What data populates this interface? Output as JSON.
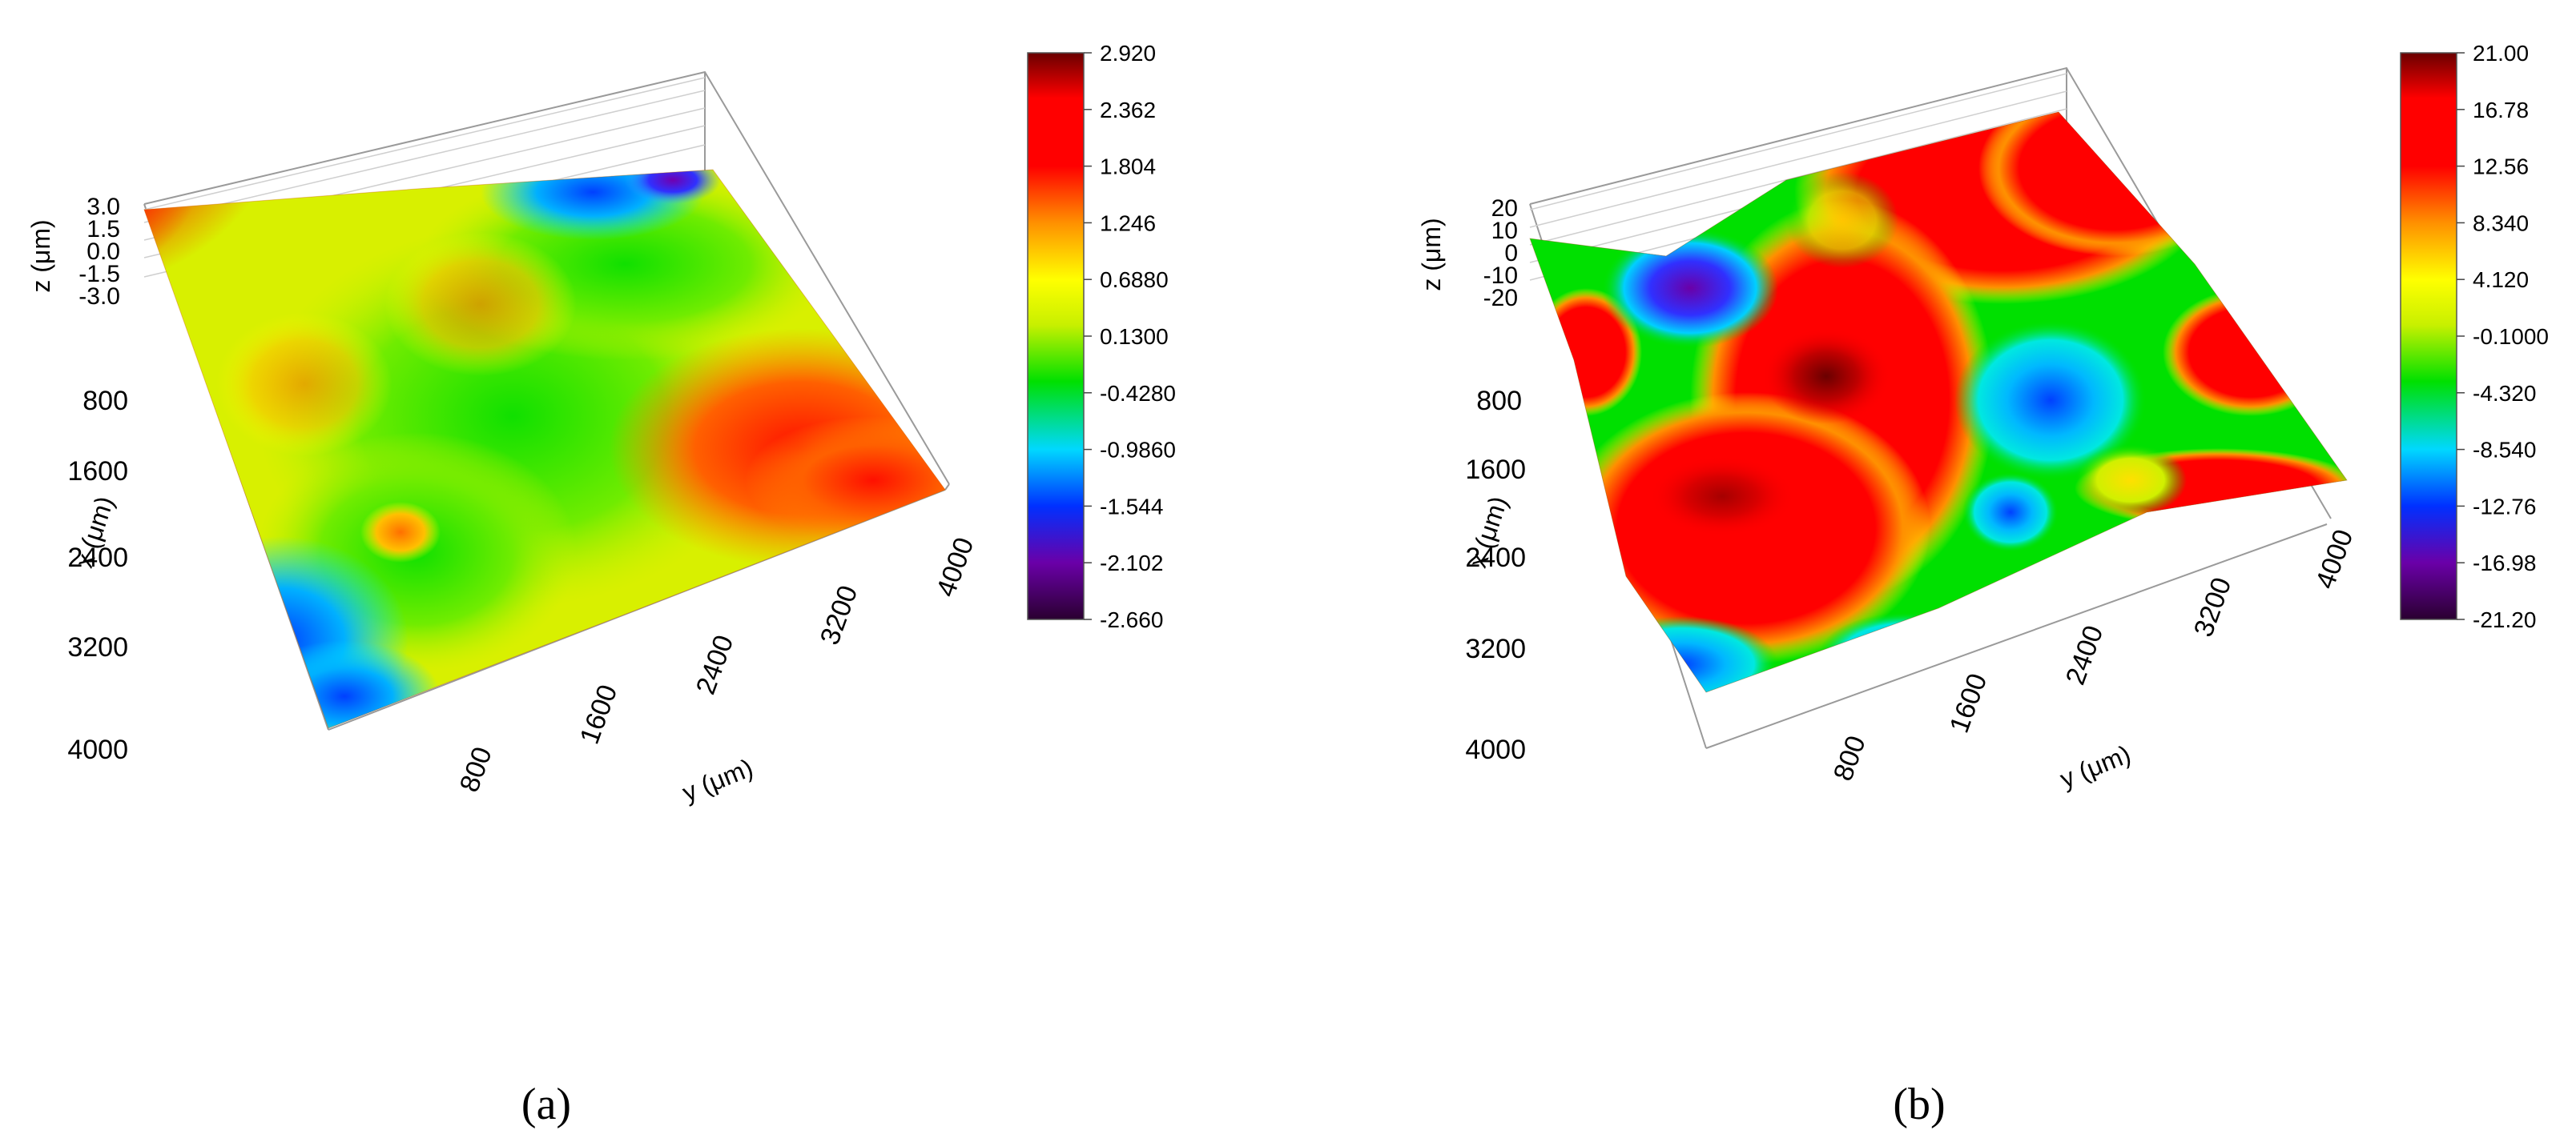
{
  "chart_data": [
    {
      "type": "surface",
      "panel_label": "(a)",
      "xlabel": "x (μm)",
      "ylabel": "y (μm)",
      "zlabel": "z (μm)",
      "x_ticks": [
        "800",
        "1600",
        "2400",
        "3200",
        "4000"
      ],
      "y_ticks": [
        "800",
        "1600",
        "2400",
        "3200",
        "4000"
      ],
      "z_ticks": [
        "3.0",
        "1.5",
        "0.0",
        "-1.5",
        "-3.0"
      ],
      "xlim": [
        0,
        4000
      ],
      "ylim": [
        0,
        4000
      ],
      "zlim": [
        -3.0,
        3.0
      ],
      "colorbar": {
        "ticks": [
          "2.920",
          "2.362",
          "1.804",
          "1.246",
          "0.6880",
          "0.1300",
          "-0.4280",
          "-0.9860",
          "-1.544",
          "-2.102",
          "-2.660"
        ],
        "range": [
          -2.66,
          2.92
        ]
      },
      "color_scale": [
        "#2a0030",
        "#6a00a8",
        "#0030ff",
        "#00d8ff",
        "#00e000",
        "#c8f000",
        "#ffff00",
        "#ff9000",
        "#ff0000",
        "#6a0000"
      ]
    },
    {
      "type": "surface",
      "panel_label": "(b)",
      "xlabel": "x (μm)",
      "ylabel": "y (μm)",
      "zlabel": "z (μm)",
      "x_ticks": [
        "800",
        "1600",
        "2400",
        "3200",
        "4000"
      ],
      "y_ticks": [
        "800",
        "1600",
        "2400",
        "3200",
        "4000"
      ],
      "z_ticks": [
        "20",
        "10",
        "0",
        "-10",
        "-20"
      ],
      "xlim": [
        0,
        4000
      ],
      "ylim": [
        0,
        4000
      ],
      "zlim": [
        -20,
        20
      ],
      "colorbar": {
        "ticks": [
          "21.00",
          "16.78",
          "12.56",
          "8.340",
          "4.120",
          "-0.1000",
          "-4.320",
          "-8.540",
          "-12.76",
          "-16.98",
          "-21.20"
        ],
        "range": [
          -21.2,
          21.0
        ]
      },
      "color_scale": [
        "#2a0030",
        "#6a00a8",
        "#0030ff",
        "#00d8ff",
        "#00e000",
        "#c8f000",
        "#ffff00",
        "#ff9000",
        "#ff0000",
        "#6a0000"
      ]
    }
  ]
}
